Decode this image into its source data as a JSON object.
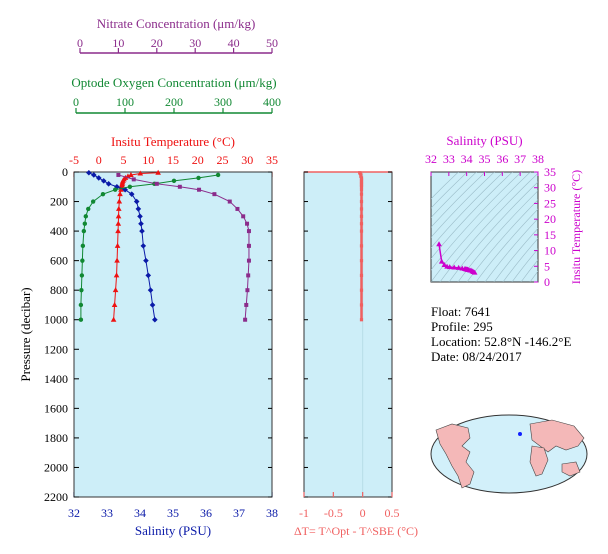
{
  "colors": {
    "nitrate": "#8b2c8b",
    "oxygen": "#118833",
    "temperature": "#ee1111",
    "salinity": "#0a1aa8",
    "delta": "#f06060",
    "ts_axis": "#cc00cc",
    "plot_bg": "#cdeef8"
  },
  "info": {
    "float_label": "Float:",
    "float_value": "7641",
    "profile_label": "Profile:",
    "profile_value": "295",
    "location_label": "Location:",
    "location_value": "52.8°N  -146.2°E",
    "date_label": "Date:",
    "date_value": "08/24/2017"
  },
  "chart_data": [
    {
      "type": "scatter",
      "panel": "profile",
      "ylabel": "Pressure (decibar)",
      "ylim": [
        2200,
        0
      ],
      "yticks": [
        0,
        200,
        400,
        600,
        800,
        1000,
        1200,
        1400,
        1600,
        1800,
        2000,
        2200
      ],
      "axes": {
        "nitrate": {
          "label": "Nitrate Concentration (μm/kg)",
          "range": [
            0,
            50
          ],
          "ticks": [
            0,
            10,
            20,
            30,
            40,
            50
          ]
        },
        "oxygen": {
          "label": "Optode Oxygen Concentration (μm/kg)",
          "range": [
            0,
            400
          ],
          "ticks": [
            0,
            100,
            200,
            300,
            400
          ]
        },
        "temperature": {
          "label": "Insitu Temperature (°C)",
          "range": [
            -5,
            35
          ],
          "ticks": [
            -5,
            0,
            5,
            10,
            15,
            20,
            25,
            30,
            35
          ]
        },
        "salinity": {
          "label": "Salinity (PSU)",
          "range": [
            32,
            38
          ],
          "ticks": [
            32,
            33,
            34,
            35,
            36,
            37,
            38
          ]
        }
      },
      "series": [
        {
          "key": "temperature",
          "marker": "triangle",
          "pressure": [
            5,
            10,
            20,
            30,
            40,
            50,
            60,
            70,
            80,
            90,
            100,
            120,
            150,
            200,
            250,
            300,
            350,
            400,
            500,
            600,
            700,
            800,
            900,
            1000
          ],
          "values": [
            12.0,
            8.4,
            6.5,
            5.9,
            5.4,
            5.1,
            4.9,
            4.8,
            4.75,
            4.7,
            4.6,
            4.5,
            4.3,
            4.15,
            4.05,
            4.0,
            3.95,
            3.9,
            3.8,
            3.7,
            3.6,
            3.4,
            3.2,
            3.0
          ]
        },
        {
          "key": "salinity",
          "marker": "diamond",
          "pressure": [
            5,
            20,
            40,
            60,
            80,
            100,
            120,
            150,
            200,
            250,
            300,
            350,
            400,
            500,
            600,
            700,
            800,
            900,
            1000
          ],
          "values": [
            32.45,
            32.6,
            32.75,
            32.9,
            33.05,
            33.3,
            33.55,
            33.75,
            33.9,
            33.95,
            34.0,
            34.03,
            34.06,
            34.1,
            34.18,
            34.25,
            34.32,
            34.38,
            34.45
          ]
        },
        {
          "key": "oxygen",
          "marker": "circle",
          "pressure": [
            20,
            40,
            60,
            80,
            100,
            120,
            150,
            200,
            250,
            300,
            350,
            400,
            500,
            600,
            700,
            800,
            900,
            1000
          ],
          "values": [
            290,
            250,
            200,
            160,
            110,
            80,
            55,
            35,
            25,
            20,
            18,
            16,
            14,
            13,
            12,
            11,
            10,
            10
          ]
        },
        {
          "key": "nitrate",
          "marker": "square",
          "pressure": [
            20,
            50,
            80,
            100,
            120,
            150,
            200,
            250,
            300,
            350,
            400,
            500,
            600,
            700,
            800,
            900,
            1000
          ],
          "values": [
            10,
            14,
            20,
            26,
            31,
            35,
            39,
            41,
            42.5,
            43.5,
            44,
            44,
            44,
            43.8,
            43.6,
            43.3,
            43.0
          ]
        }
      ]
    },
    {
      "type": "scatter",
      "panel": "delta",
      "xlabel": "ΔT= T^Opt - T^SBE (°C)",
      "xlim": [
        -1.0,
        0.5
      ],
      "xticks": [
        -1.0,
        -0.5,
        0.0,
        0.5
      ],
      "ylim": [
        2200,
        0
      ],
      "pressure": [
        5,
        10,
        20,
        30,
        40,
        50,
        60,
        70,
        80,
        90,
        100,
        120,
        150,
        200,
        250,
        300,
        350,
        400,
        500,
        600,
        700,
        800,
        900,
        1000
      ],
      "values": [
        -0.05,
        -0.04,
        -0.03,
        -0.03,
        -0.02,
        -0.02,
        -0.02,
        -0.02,
        -0.02,
        -0.02,
        -0.02,
        -0.02,
        -0.02,
        -0.02,
        -0.02,
        -0.02,
        -0.02,
        -0.02,
        -0.02,
        -0.02,
        -0.02,
        -0.02,
        -0.02,
        -0.02
      ]
    },
    {
      "type": "scatter",
      "panel": "ts",
      "xlabel": "Salinity (PSU)",
      "ylabel": "Insitu Temperature (°C)",
      "xlim": [
        32,
        38
      ],
      "xticks": [
        32,
        33,
        34,
        35,
        36,
        37,
        38
      ],
      "ylim": [
        0,
        35
      ],
      "yticks": [
        0,
        5,
        10,
        15,
        20,
        25,
        30,
        35
      ],
      "x": [
        32.45,
        32.6,
        32.75,
        32.9,
        33.05,
        33.3,
        33.55,
        33.75,
        33.9,
        33.95,
        34.0,
        34.03,
        34.06,
        34.1,
        34.18,
        34.25,
        34.32,
        34.38,
        34.45
      ],
      "y": [
        12.0,
        6.5,
        5.4,
        4.9,
        4.75,
        4.6,
        4.5,
        4.3,
        4.15,
        4.05,
        4.0,
        3.95,
        3.9,
        3.8,
        3.7,
        3.6,
        3.4,
        3.2,
        3.0
      ]
    }
  ]
}
